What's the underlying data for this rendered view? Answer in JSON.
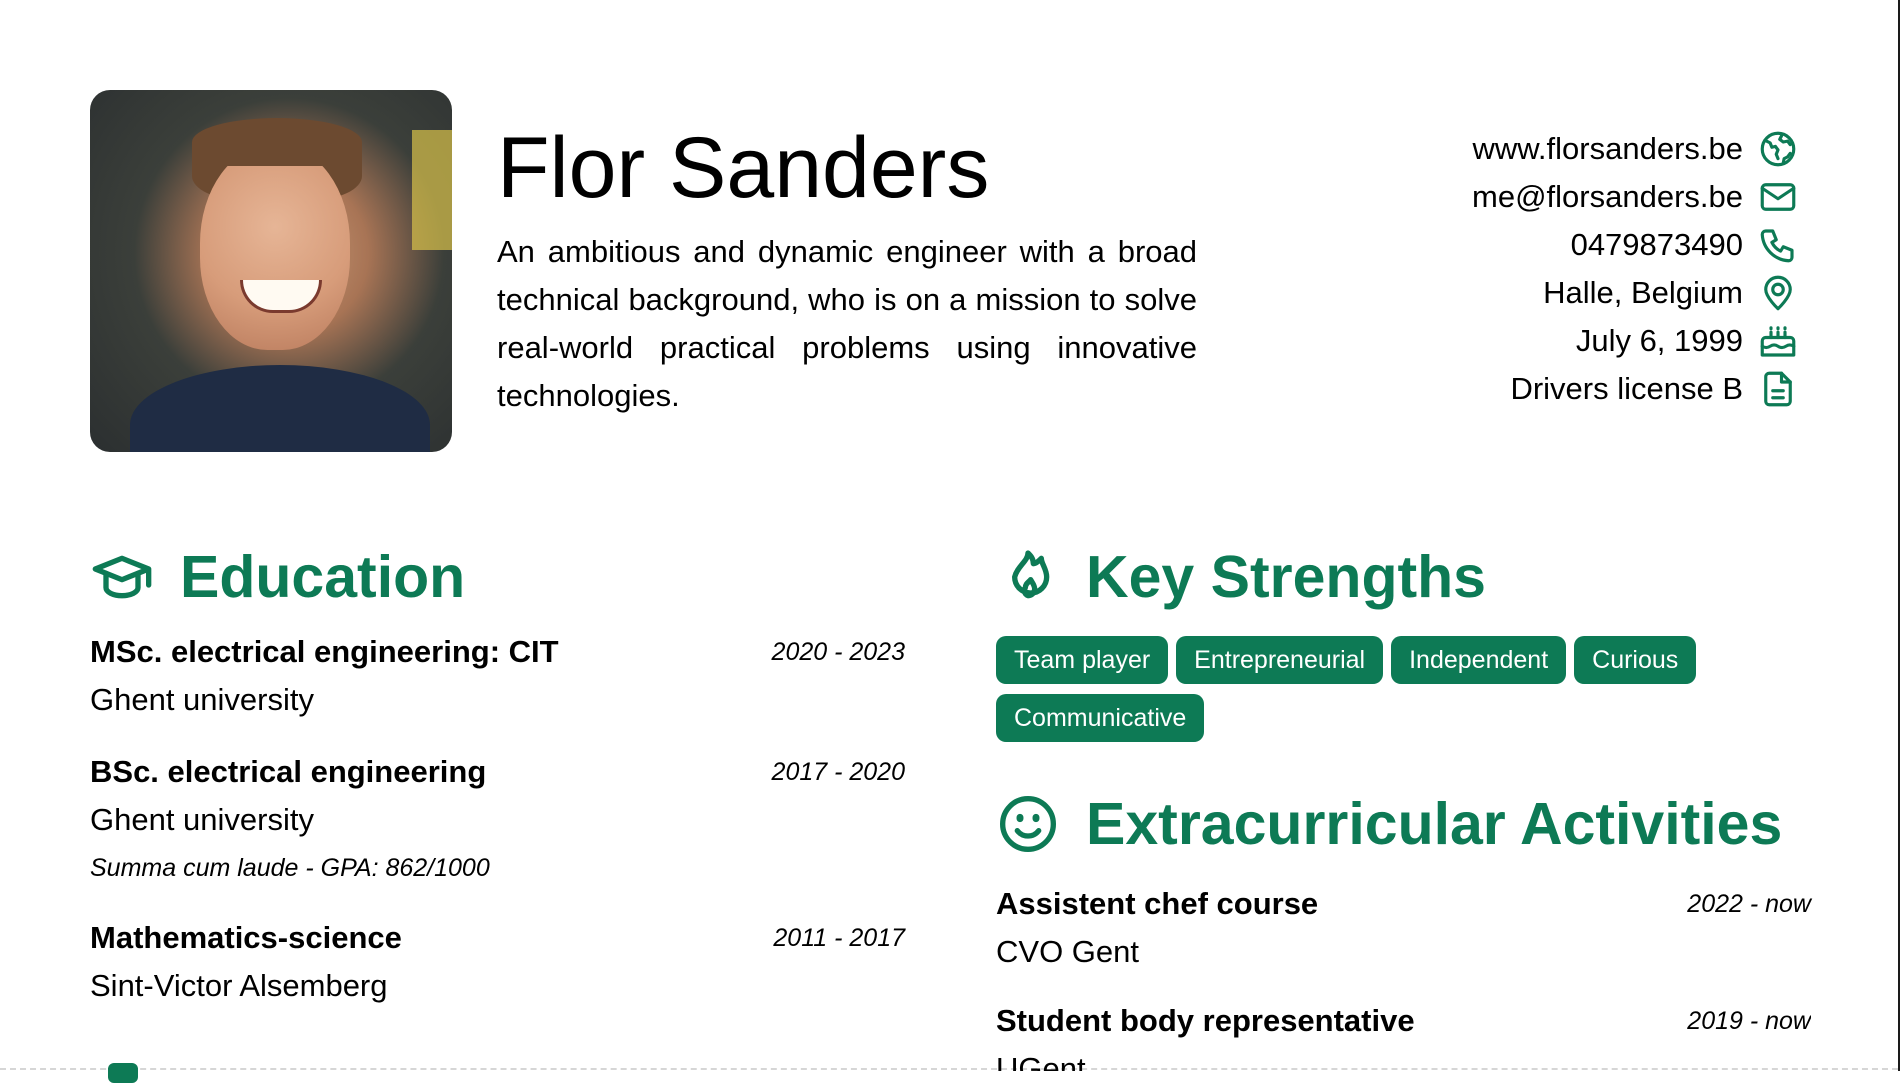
{
  "header": {
    "name": "Flor Sanders",
    "summary": "An ambitious and dynamic engineer with a broad technical background, who is on a mission to solve real-world practical problems using innovative technologies."
  },
  "contacts": [
    {
      "text": "www.florsanders.be",
      "icon": "globe-icon"
    },
    {
      "text": "me@florsanders.be",
      "icon": "mail-icon"
    },
    {
      "text": "0479873490",
      "icon": "phone-icon"
    },
    {
      "text": "Halle, Belgium",
      "icon": "location-pin-icon"
    },
    {
      "text": "July 6, 1999",
      "icon": "birthday-cake-icon"
    },
    {
      "text": "Drivers license B",
      "icon": "document-icon"
    }
  ],
  "education": {
    "title": "Education",
    "entries": [
      {
        "title": "MSc. electrical engineering: CIT",
        "date": "2020 - 2023",
        "institution": "Ghent university"
      },
      {
        "title": "BSc. electrical engineering",
        "date": "2017 - 2020",
        "institution": "Ghent university",
        "note": "Summa cum laude - GPA: 862/1000"
      },
      {
        "title": "Mathematics-science",
        "date": "2011 - 2017",
        "institution": "Sint-Victor Alsemberg"
      }
    ]
  },
  "strengths": {
    "title": "Key Strengths",
    "items": [
      "Team player",
      "Entrepreneurial",
      "Independent",
      "Curious",
      "Communicative"
    ]
  },
  "extracurricular": {
    "title": "Extracurricular Activities",
    "entries": [
      {
        "title": "Assistent chef course",
        "date": "2022 - now",
        "institution": "CVO Gent"
      },
      {
        "title": "Student body representative",
        "date": "2019 - now",
        "institution": "UGent"
      }
    ]
  },
  "colors": {
    "accent": "#0d7a55",
    "text": "#000000",
    "background": "#ffffff"
  }
}
